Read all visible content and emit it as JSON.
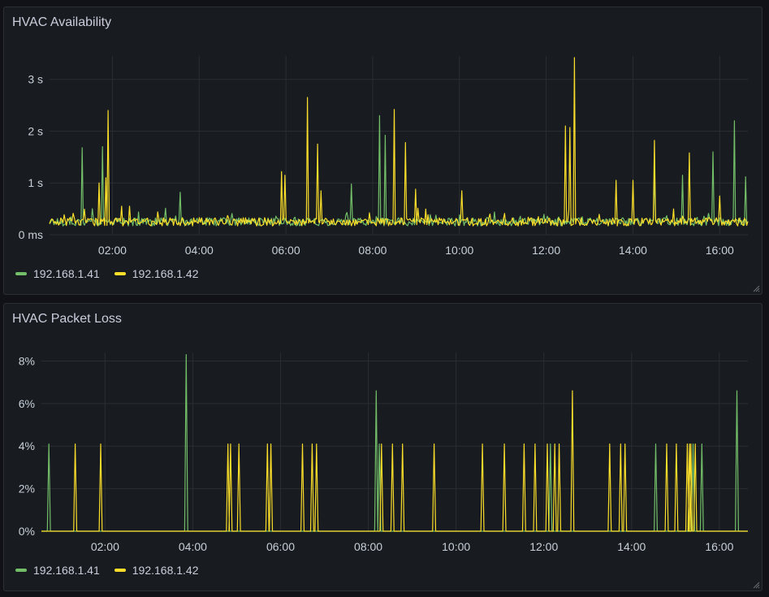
{
  "colors": {
    "series_a": "#73bf69",
    "series_b": "#fade2a",
    "grid": "#2a2d33"
  },
  "chart_data": [
    {
      "type": "line",
      "title": "HVAC Availability",
      "unit": "seconds",
      "xlabel": "",
      "ylabel": "",
      "x_range_hours": [
        0.55,
        16.65
      ],
      "ylim": [
        0,
        3.45
      ],
      "x_ticks": [
        {
          "value": 2,
          "label": "02:00"
        },
        {
          "value": 4,
          "label": "04:00"
        },
        {
          "value": 6,
          "label": "06:00"
        },
        {
          "value": 8,
          "label": "08:00"
        },
        {
          "value": 10,
          "label": "10:00"
        },
        {
          "value": 12,
          "label": "12:00"
        },
        {
          "value": 14,
          "label": "14:00"
        },
        {
          "value": 16,
          "label": "16:00"
        }
      ],
      "y_ticks": [
        {
          "value": 0,
          "label": "0 ms"
        },
        {
          "value": 1,
          "label": "1 s"
        },
        {
          "value": 2,
          "label": "2 s"
        },
        {
          "value": 3,
          "label": "3 s"
        }
      ],
      "grid": true,
      "legend": "bottom-left",
      "baseline_seconds": 0.25,
      "series": [
        {
          "name": "192.168.1.41",
          "color": "#73bf69",
          "spikes": [
            [
              1.3,
              1.68
            ],
            [
              1.78,
              1.7
            ],
            [
              3.55,
              0.82
            ],
            [
              7.5,
              0.98
            ],
            [
              8.15,
              2.3
            ],
            [
              8.3,
              1.92
            ],
            [
              14.5,
              1.15
            ],
            [
              15.15,
              1.15
            ],
            [
              15.85,
              1.6
            ],
            [
              16.35,
              2.2
            ],
            [
              16.6,
              1.12
            ]
          ]
        },
        {
          "name": "192.168.1.42",
          "color": "#fade2a",
          "spikes": [
            [
              1.7,
              1.0
            ],
            [
              1.85,
              1.1
            ],
            [
              1.9,
              2.4
            ],
            [
              2.2,
              0.55
            ],
            [
              2.4,
              0.55
            ],
            [
              5.9,
              1.22
            ],
            [
              5.98,
              1.15
            ],
            [
              6.5,
              2.65
            ],
            [
              6.72,
              1.75
            ],
            [
              6.82,
              0.85
            ],
            [
              8.5,
              2.42
            ],
            [
              8.75,
              1.78
            ],
            [
              9.0,
              0.88
            ],
            [
              10.05,
              0.85
            ],
            [
              12.45,
              2.1
            ],
            [
              12.55,
              2.07
            ],
            [
              12.65,
              3.42
            ],
            [
              13.6,
              1.05
            ],
            [
              14.0,
              1.05
            ],
            [
              14.5,
              1.82
            ],
            [
              15.3,
              1.58
            ],
            [
              16.0,
              0.75
            ]
          ]
        }
      ]
    },
    {
      "type": "line",
      "title": "HVAC Packet Loss",
      "unit": "percent",
      "xlabel": "",
      "ylabel": "",
      "x_range_hours": [
        0.55,
        16.65
      ],
      "ylim": [
        0,
        8.4
      ],
      "x_ticks": [
        {
          "value": 2,
          "label": "02:00"
        },
        {
          "value": 4,
          "label": "04:00"
        },
        {
          "value": 6,
          "label": "06:00"
        },
        {
          "value": 8,
          "label": "08:00"
        },
        {
          "value": 10,
          "label": "10:00"
        },
        {
          "value": 12,
          "label": "12:00"
        },
        {
          "value": 14,
          "label": "14:00"
        },
        {
          "value": 16,
          "label": "16:00"
        }
      ],
      "y_ticks": [
        {
          "value": 0,
          "label": "0%"
        },
        {
          "value": 2,
          "label": "2%"
        },
        {
          "value": 4,
          "label": "4%"
        },
        {
          "value": 6,
          "label": "6%"
        },
        {
          "value": 8,
          "label": "8%"
        }
      ],
      "grid": true,
      "legend": "bottom-left",
      "series": [
        {
          "name": "192.168.1.41",
          "color": "#73bf69",
          "spikes": [
            [
              0.72,
              4.1
            ],
            [
              3.85,
              8.3
            ],
            [
              8.18,
              6.6
            ],
            [
              8.25,
              4.1
            ],
            [
              12.15,
              4.1
            ],
            [
              14.55,
              4.1
            ],
            [
              15.4,
              4.1
            ],
            [
              15.6,
              4.1
            ],
            [
              16.4,
              6.6
            ]
          ]
        },
        {
          "name": "192.168.1.42",
          "color": "#fade2a",
          "spikes": [
            [
              1.32,
              4.1
            ],
            [
              1.9,
              4.1
            ],
            [
              4.8,
              4.1
            ],
            [
              4.86,
              4.1
            ],
            [
              5.05,
              4.1
            ],
            [
              5.7,
              4.1
            ],
            [
              5.78,
              4.1
            ],
            [
              6.5,
              4.1
            ],
            [
              6.72,
              4.1
            ],
            [
              6.82,
              4.1
            ],
            [
              8.3,
              4.1
            ],
            [
              8.55,
              4.1
            ],
            [
              8.78,
              4.1
            ],
            [
              9.5,
              4.1
            ],
            [
              10.6,
              4.1
            ],
            [
              11.1,
              4.1
            ],
            [
              11.55,
              4.1
            ],
            [
              11.8,
              4.1
            ],
            [
              12.08,
              4.1
            ],
            [
              12.25,
              4.1
            ],
            [
              12.35,
              4.1
            ],
            [
              12.65,
              6.6
            ],
            [
              13.5,
              4.1
            ],
            [
              13.75,
              4.1
            ],
            [
              13.85,
              4.1
            ],
            [
              14.8,
              4.1
            ],
            [
              15.02,
              4.1
            ],
            [
              15.27,
              4.1
            ],
            [
              15.32,
              4.1
            ],
            [
              15.35,
              4.1
            ],
            [
              15.45,
              4.1
            ]
          ]
        }
      ]
    }
  ]
}
